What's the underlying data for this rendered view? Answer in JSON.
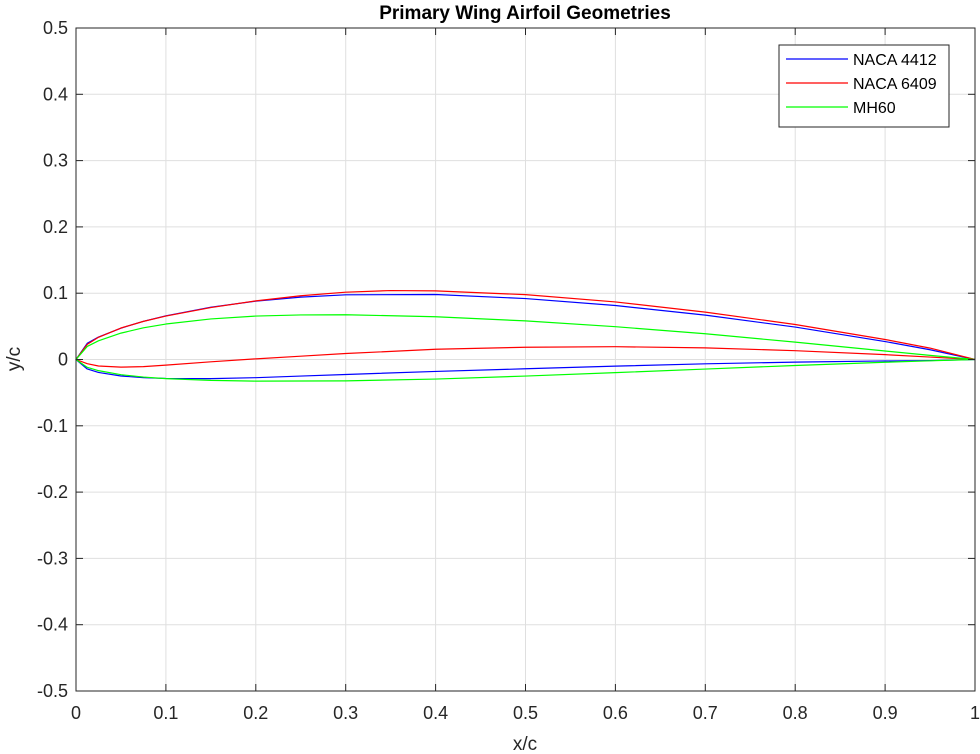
{
  "chart_data": {
    "type": "line",
    "title": "Primary Wing Airfoil Geometries",
    "xlabel": "x/c",
    "ylabel": "y/c",
    "xlim": [
      0,
      1
    ],
    "ylim": [
      -0.5,
      0.5
    ],
    "grid": true,
    "legend_position": "top-right",
    "x_ticks": [
      "0",
      "0.1",
      "0.2",
      "0.3",
      "0.4",
      "0.5",
      "0.6",
      "0.7",
      "0.8",
      "0.9",
      "1"
    ],
    "y_ticks": [
      "0.5",
      "0.4",
      "0.3",
      "0.2",
      "0.1",
      "0",
      "-0.1",
      "-0.2",
      "-0.3",
      "-0.4",
      "-0.5"
    ],
    "series": [
      {
        "name": "NACA 4412",
        "color": "#0000ff",
        "points": [
          [
            1.0,
            0.0
          ],
          [
            0.95,
            0.0147
          ],
          [
            0.9,
            0.0271
          ],
          [
            0.8,
            0.0489
          ],
          [
            0.7,
            0.0669
          ],
          [
            0.6,
            0.0814
          ],
          [
            0.5,
            0.0919
          ],
          [
            0.4,
            0.098
          ],
          [
            0.3,
            0.0976
          ],
          [
            0.25,
            0.0941
          ],
          [
            0.2,
            0.088
          ],
          [
            0.15,
            0.0789
          ],
          [
            0.1,
            0.0659
          ],
          [
            0.075,
            0.0576
          ],
          [
            0.05,
            0.0473
          ],
          [
            0.025,
            0.0339
          ],
          [
            0.0125,
            0.0244
          ],
          [
            0.0,
            0.0
          ],
          [
            0.0125,
            -0.0143
          ],
          [
            0.025,
            -0.0195
          ],
          [
            0.05,
            -0.0249
          ],
          [
            0.075,
            -0.0274
          ],
          [
            0.1,
            -0.0286
          ],
          [
            0.15,
            -0.0288
          ],
          [
            0.2,
            -0.0274
          ],
          [
            0.25,
            -0.025
          ],
          [
            0.3,
            -0.0226
          ],
          [
            0.4,
            -0.018
          ],
          [
            0.5,
            -0.014
          ],
          [
            0.6,
            -0.01
          ],
          [
            0.7,
            -0.0065
          ],
          [
            0.8,
            -0.0039
          ],
          [
            0.9,
            -0.0022
          ],
          [
            0.95,
            -0.0016
          ],
          [
            1.0,
            0.0
          ]
        ]
      },
      {
        "name": "NACA 6409",
        "color": "#ff0000",
        "points": [
          [
            1.0,
            0.0
          ],
          [
            0.95,
            0.0172
          ],
          [
            0.9,
            0.0302
          ],
          [
            0.8,
            0.0528
          ],
          [
            0.7,
            0.0715
          ],
          [
            0.6,
            0.0868
          ],
          [
            0.5,
            0.0978
          ],
          [
            0.4,
            0.1035
          ],
          [
            0.35,
            0.104
          ],
          [
            0.3,
            0.1015
          ],
          [
            0.25,
            0.0962
          ],
          [
            0.2,
            0.0884
          ],
          [
            0.15,
            0.0783
          ],
          [
            0.1,
            0.0655
          ],
          [
            0.075,
            0.0575
          ],
          [
            0.05,
            0.0475
          ],
          [
            0.025,
            0.0335
          ],
          [
            0.0125,
            0.0228
          ],
          [
            0.0,
            0.0
          ],
          [
            0.0125,
            -0.0063
          ],
          [
            0.025,
            -0.0098
          ],
          [
            0.05,
            -0.0115
          ],
          [
            0.075,
            -0.0108
          ],
          [
            0.1,
            -0.0085
          ],
          [
            0.15,
            -0.0035
          ],
          [
            0.2,
            0.001
          ],
          [
            0.25,
            0.005
          ],
          [
            0.3,
            0.009
          ],
          [
            0.4,
            0.0155
          ],
          [
            0.5,
            0.0185
          ],
          [
            0.6,
            0.0193
          ],
          [
            0.7,
            0.0175
          ],
          [
            0.8,
            0.0133
          ],
          [
            0.9,
            0.0073
          ],
          [
            0.95,
            0.0037
          ],
          [
            1.0,
            0.0
          ]
        ]
      },
      {
        "name": "MH60",
        "color": "#00ff00",
        "points": [
          [
            1.0,
            0.0
          ],
          [
            0.95,
            0.0062
          ],
          [
            0.9,
            0.0128
          ],
          [
            0.8,
            0.0262
          ],
          [
            0.7,
            0.0388
          ],
          [
            0.6,
            0.0495
          ],
          [
            0.5,
            0.0582
          ],
          [
            0.4,
            0.0645
          ],
          [
            0.3,
            0.0675
          ],
          [
            0.25,
            0.0672
          ],
          [
            0.2,
            0.0655
          ],
          [
            0.15,
            0.0612
          ],
          [
            0.1,
            0.0535
          ],
          [
            0.075,
            0.0478
          ],
          [
            0.05,
            0.0398
          ],
          [
            0.025,
            0.0282
          ],
          [
            0.0125,
            0.0197
          ],
          [
            0.0,
            0.0
          ],
          [
            0.0125,
            -0.0118
          ],
          [
            0.025,
            -0.0168
          ],
          [
            0.05,
            -0.0229
          ],
          [
            0.075,
            -0.0265
          ],
          [
            0.1,
            -0.0288
          ],
          [
            0.15,
            -0.0315
          ],
          [
            0.2,
            -0.0326
          ],
          [
            0.3,
            -0.0322
          ],
          [
            0.4,
            -0.0295
          ],
          [
            0.5,
            -0.025
          ],
          [
            0.6,
            -0.0198
          ],
          [
            0.7,
            -0.0144
          ],
          [
            0.8,
            -0.009
          ],
          [
            0.9,
            -0.0042
          ],
          [
            0.95,
            -0.002
          ],
          [
            1.0,
            0.0
          ]
        ]
      }
    ]
  }
}
